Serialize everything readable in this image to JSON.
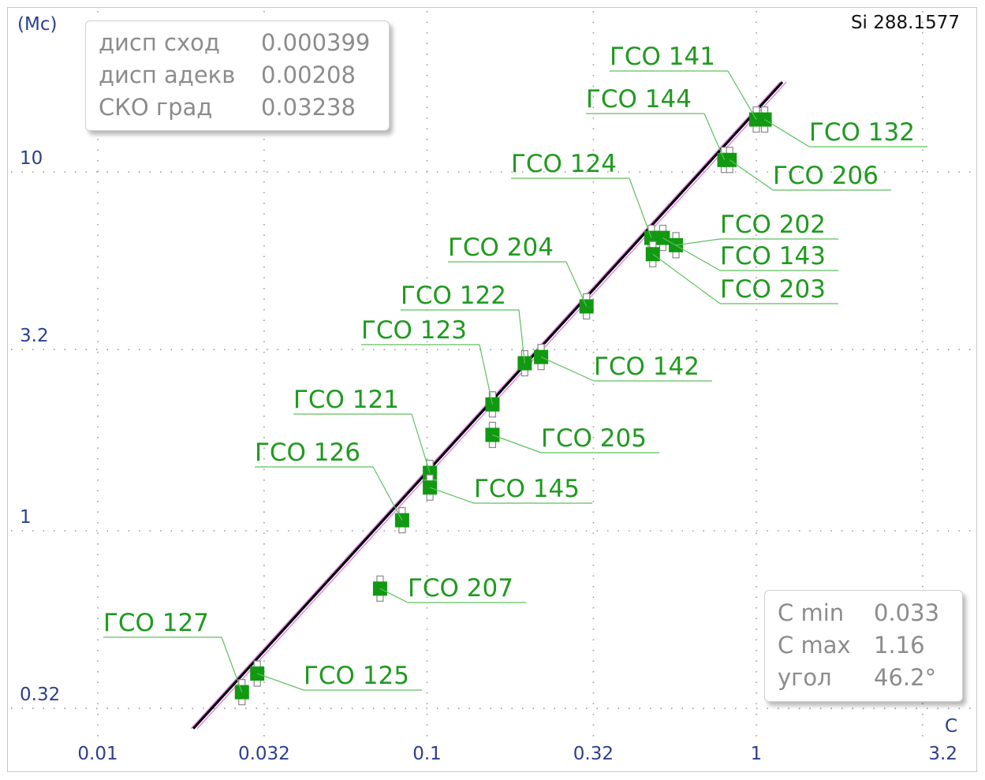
{
  "title": "Si 288.1577",
  "chart_data": {
    "type": "scatter",
    "title": "Si 288.1577",
    "xlabel": "C",
    "ylabel": "(Mc)",
    "x_scale": "log",
    "y_scale": "log",
    "xlim": [
      0.01,
      3.2
    ],
    "ylim": [
      0.26,
      20
    ],
    "x_ticks": [
      0.01,
      0.032,
      0.1,
      0.32,
      1,
      3.2
    ],
    "x_tick_labels": [
      "0.01",
      "0.032",
      "0.1",
      "0.32",
      "1",
      "3.2"
    ],
    "y_ticks": [
      0.32,
      1,
      3.2,
      10
    ],
    "y_tick_labels": [
      "0.32",
      "1",
      "3.2",
      "10"
    ],
    "grid": true,
    "fit_line": {
      "x": [
        0.0195,
        1.2
      ],
      "y": [
        0.281,
        17.8
      ],
      "color": "#000000"
    },
    "points": [
      {
        "label": "ГСО 141",
        "x": 1.0,
        "y": 14.0
      },
      {
        "label": "ГСО 132",
        "x": 1.06,
        "y": 14.0
      },
      {
        "label": "ГСО 144",
        "x": 0.8,
        "y": 10.8
      },
      {
        "label": "ГСО 206",
        "x": 0.83,
        "y": 10.8
      },
      {
        "label": "ГСО 124",
        "x": 0.48,
        "y": 6.55
      },
      {
        "label": "ГСО 202",
        "x": 0.57,
        "y": 6.25
      },
      {
        "label": "ГСО 143",
        "x": 0.52,
        "y": 6.55
      },
      {
        "label": "ГСО 203",
        "x": 0.485,
        "y": 5.9
      },
      {
        "label": "ГСО 204",
        "x": 0.305,
        "y": 4.22
      },
      {
        "label": "ГСО 122",
        "x": 0.198,
        "y": 2.93
      },
      {
        "label": "ГСО 142",
        "x": 0.222,
        "y": 3.05
      },
      {
        "label": "ГСО 123",
        "x": 0.158,
        "y": 2.25
      },
      {
        "label": "ГСО 205",
        "x": 0.158,
        "y": 1.85
      },
      {
        "label": "ГСО 121",
        "x": 0.102,
        "y": 1.45
      },
      {
        "label": "ГСО 145",
        "x": 0.102,
        "y": 1.32
      },
      {
        "label": "ГСО 126",
        "x": 0.084,
        "y": 1.07
      },
      {
        "label": "ГСО 207",
        "x": 0.072,
        "y": 0.69
      },
      {
        "label": "ГСО 125",
        "x": 0.0305,
        "y": 0.4
      },
      {
        "label": "ГСО 127",
        "x": 0.0274,
        "y": 0.355
      }
    ],
    "point_color": "#119911",
    "label_color": "#1f9a1f",
    "axis_label_color": "#2b3f8f"
  },
  "stats": [
    {
      "key": "дисп сход",
      "value": "0.000399"
    },
    {
      "key": "дисп адекв",
      "value": "0.00208"
    },
    {
      "key": "СКО град",
      "value": "0.03238"
    }
  ],
  "range": [
    {
      "key": "C min",
      "value": "0.033"
    },
    {
      "key": "C max",
      "value": "1.16"
    },
    {
      "key": "угол",
      "value": "46.2°"
    }
  ]
}
